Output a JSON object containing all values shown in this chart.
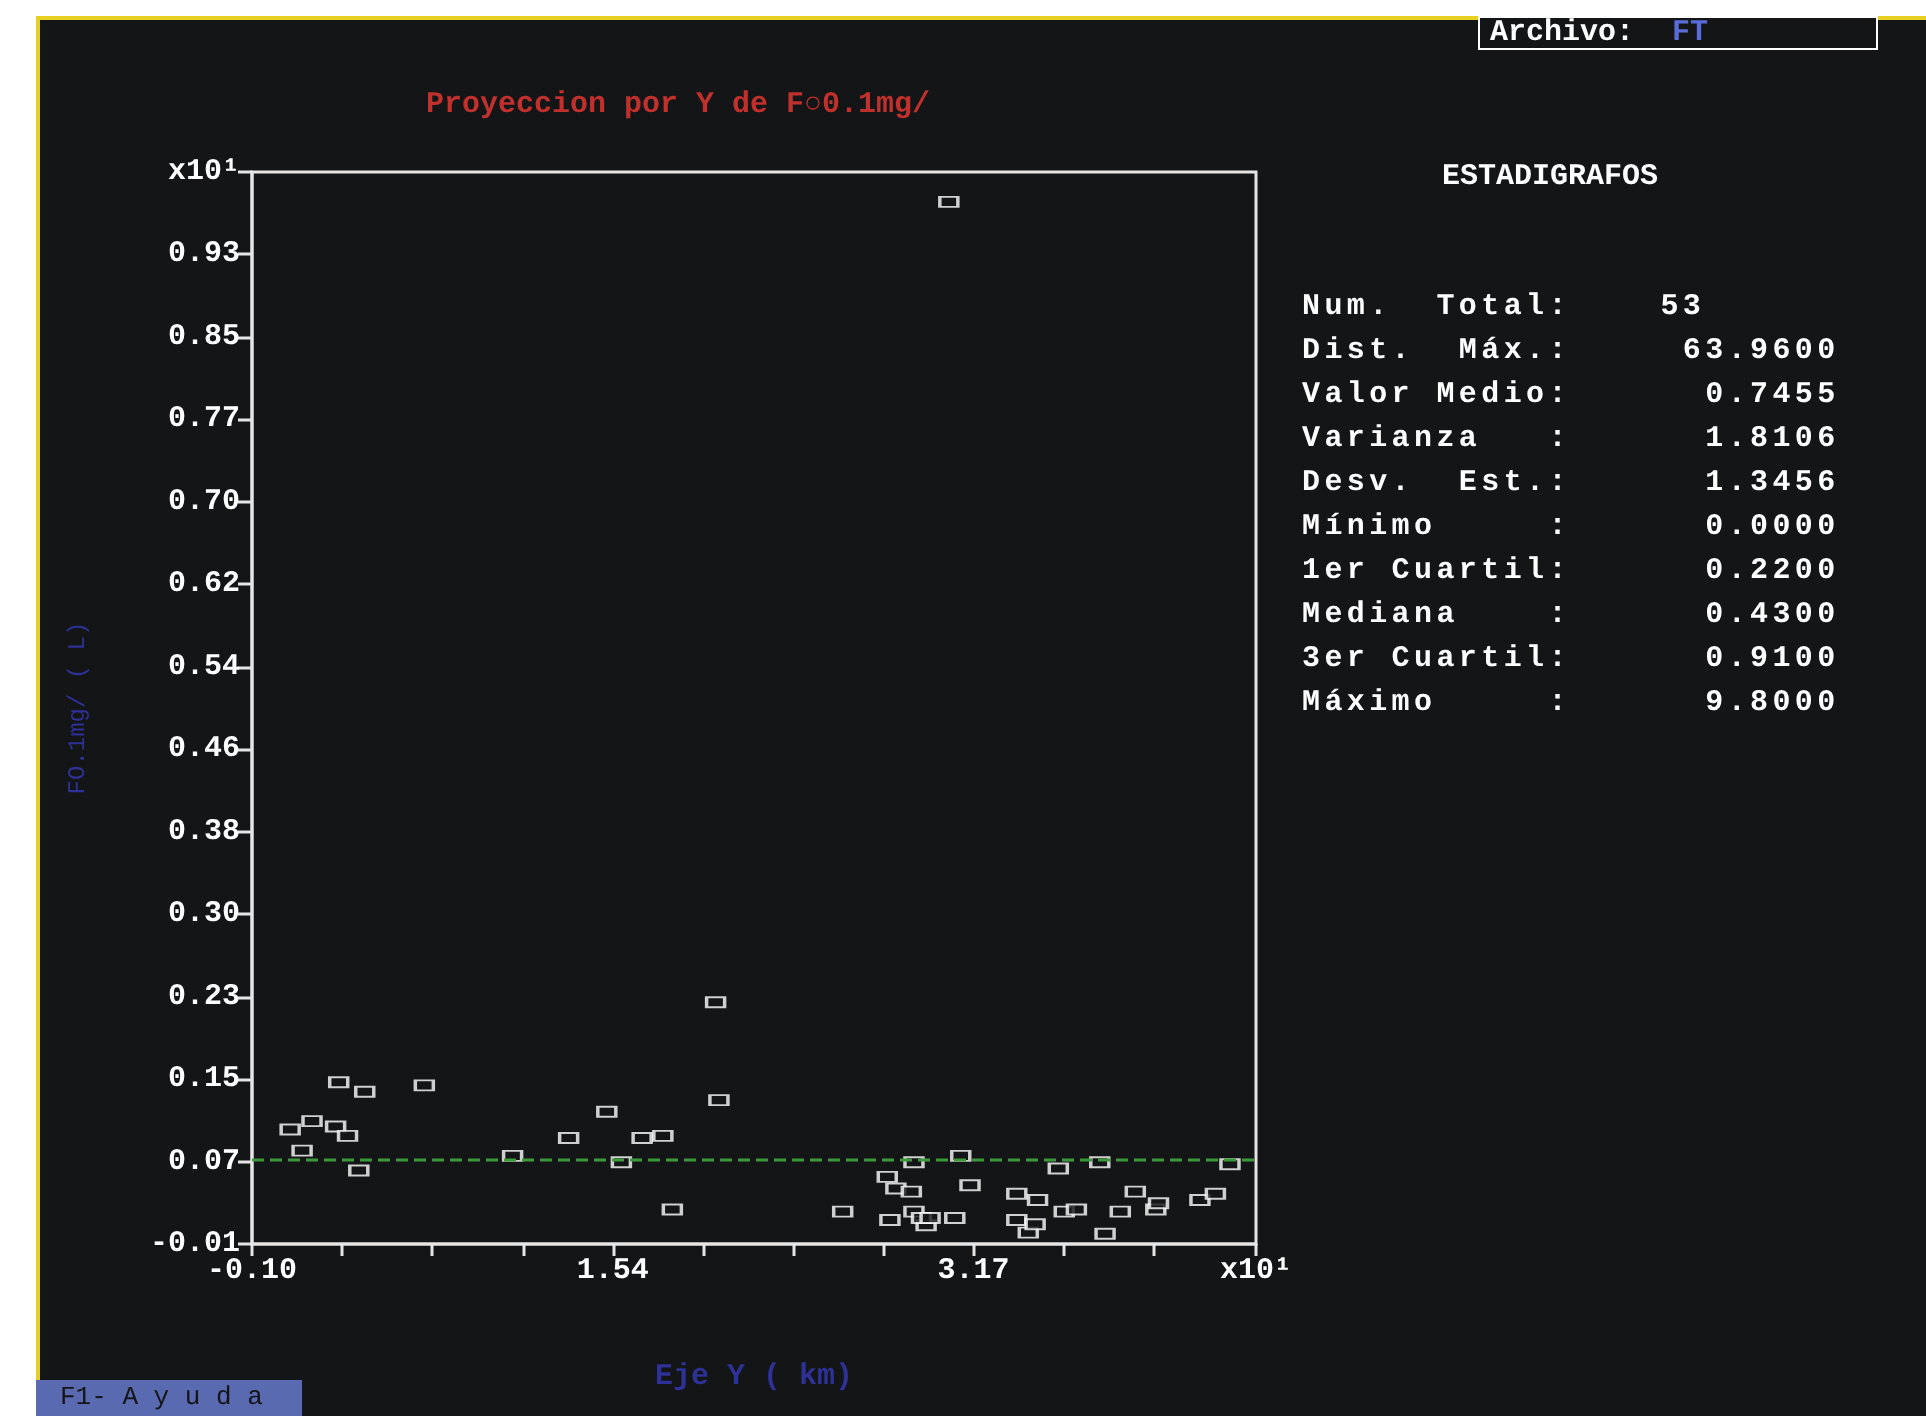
{
  "chart_data": {
    "type": "scatter",
    "title": "Proyeccion por Y de F○0.1mg/",
    "xlabel": "Eje Y ( km)",
    "ylabel": "FO.1mg/ ( L)",
    "annotations": [
      "Archivo:",
      "FT",
      "ESTADIGRAFOS",
      "Num.  Total:    53",
      "Dist.  Máx.:     63.9600",
      "Valor Medio:      0.7455",
      "Varianza   :      1.8106",
      "Desv.  Est.:      1.3456",
      "Mínimo     :      0.0000",
      "1er Cuartil:      0.2200",
      "Mediana    :      0.4300",
      "3er Cuartil:      0.9100",
      "Máximo     :      9.8000",
      "F1- A y u d a"
    ],
    "x": [
      0.073,
      0.127,
      0.172,
      0.293,
      0.279,
      0.333,
      0.411,
      0.384,
      0.681,
      1.081,
      1.335,
      1.508,
      1.574,
      1.668,
      1.762,
      1.805,
      2.001,
      2.016,
      2.577,
      2.779,
      2.818,
      2.791,
      2.888,
      2.9,
      2.9,
      2.955,
      2.934,
      2.973,
      3.085,
      3.112,
      3.154,
      3.366,
      3.366,
      3.418,
      3.449,
      3.46,
      3.554,
      3.581,
      3.636,
      3.742,
      3.766,
      3.835,
      3.903,
      3.996,
      4.008,
      4.196,
      4.266,
      4.332,
      3.058
    ],
    "series": [
      {
        "color": "#ffffff",
        "values": [
          0.099,
          0.079,
          0.107,
          0.144,
          0.102,
          0.093,
          0.135,
          0.06,
          0.141,
          0.074,
          0.091,
          0.116,
          0.068,
          0.091,
          0.093,
          0.023,
          0.22,
          0.127,
          0.021,
          0.054,
          0.043,
          0.013,
          0.04,
          0.068,
          0.021,
          0.008,
          0.015,
          0.015,
          0.015,
          0.074,
          0.046,
          0.038,
          0.013,
          0.001,
          0.009,
          0.032,
          0.062,
          0.021,
          0.023,
          0.068,
          0.0,
          0.021,
          0.04,
          0.023,
          0.029,
          0.032,
          0.038,
          0.066,
          0.981
        ]
      }
    ],
    "marker": "square",
    "xlim": [
      -0.1,
      4.45
    ],
    "xticks": [
      {
        "value": -0.1,
        "label": "-0.10"
      },
      {
        "value": 0.3088,
        "label": null
      },
      {
        "value": 0.7175,
        "label": null
      },
      {
        "value": 1.1263,
        "label": null
      },
      {
        "value": 1.535,
        "label": "1.54"
      },
      {
        "value": 1.9438,
        "label": null
      },
      {
        "value": 2.3525,
        "label": null
      },
      {
        "value": 2.7613,
        "label": null
      },
      {
        "value": 3.17,
        "label": "3.17"
      },
      {
        "value": 3.5788,
        "label": null
      },
      {
        "value": 3.9875,
        "label": null
      },
      {
        "value": 4.45,
        "label": "x10¹"
      }
    ],
    "ylim": [
      -0.0098,
      1.0094
    ],
    "yticks": [
      {
        "value": -0.0098,
        "label": "-0.01"
      },
      {
        "value": 0.0686,
        "label": "0.07"
      },
      {
        "value": 0.147,
        "label": "0.15"
      },
      {
        "value": 0.2254,
        "label": "0.23"
      },
      {
        "value": 0.3038,
        "label": "0.30"
      },
      {
        "value": 0.3822,
        "label": "0.38"
      },
      {
        "value": 0.4606,
        "label": "0.46"
      },
      {
        "value": 0.539,
        "label": "0.54"
      },
      {
        "value": 0.6174,
        "label": "0.62"
      },
      {
        "value": 0.6958,
        "label": "0.70"
      },
      {
        "value": 0.7742,
        "label": "0.77"
      },
      {
        "value": 0.8526,
        "label": "0.85"
      },
      {
        "value": 0.931,
        "label": "0.93"
      },
      {
        "value": 1.0094,
        "label": "x10¹"
      }
    ],
    "ref_lines": [
      {
        "axis": "y",
        "value": 0.07455,
        "color": "#3c9a3c",
        "line_style": "dashed"
      }
    ],
    "grid": false
  }
}
